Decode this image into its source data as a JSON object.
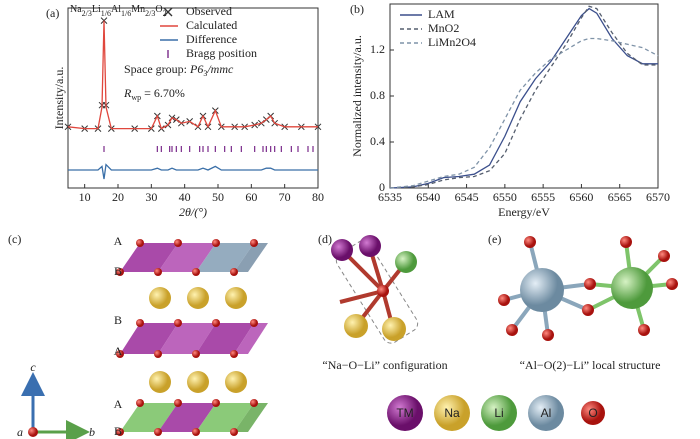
{
  "chart_data": [
    {
      "type": "line",
      "panel_label": "(a)",
      "formula": [
        [
          "Na",
          "2/3"
        ],
        [
          "Li",
          "1/6"
        ],
        [
          "Al",
          "1/6"
        ],
        [
          "Mn",
          "2/3"
        ],
        [
          "O",
          "2"
        ]
      ],
      "space_group": [
        "Space group: ",
        "P6",
        "3",
        "/mmc"
      ],
      "r_factor": [
        "R",
        "wp",
        " = 6.70%"
      ],
      "x_label": "2θ/(°)",
      "y_label": "Intensity/a.u.",
      "x": [
        5,
        10,
        14,
        15.2,
        15.8,
        16.4,
        18,
        25,
        30,
        31.8,
        33,
        35,
        36.2,
        37.5,
        39,
        41.5,
        44,
        45.5,
        47,
        49.2,
        51,
        55,
        58,
        61,
        63,
        64.5,
        65.8,
        67,
        70,
        75,
        80
      ],
      "series": [
        {
          "name": "Observed",
          "color": "#333333",
          "marker": "x",
          "values": [
            34,
            33,
            33,
            46,
            93,
            46,
            33,
            33,
            33,
            40,
            33,
            35,
            39,
            38,
            36,
            37,
            34,
            40,
            34,
            43,
            34,
            34,
            34,
            35,
            36,
            38,
            40,
            36,
            34,
            34,
            34
          ]
        },
        {
          "name": "Calculated",
          "color": "#e0473d",
          "values": [
            34,
            33,
            33,
            45,
            93,
            45,
            33,
            33,
            33,
            40,
            33,
            35,
            39,
            38,
            36,
            37,
            34,
            40,
            34,
            43,
            34,
            34,
            34,
            35,
            36,
            38,
            40,
            36,
            34,
            34,
            34
          ]
        },
        {
          "name": "Difference",
          "color": "#3a6fa8",
          "values": [
            10,
            10,
            10,
            12,
            5,
            13,
            10,
            10,
            10,
            11,
            10,
            10,
            11,
            10,
            10,
            10,
            10,
            11,
            10,
            12,
            10,
            10,
            10,
            10,
            10,
            11,
            11,
            10,
            10,
            10,
            10
          ]
        }
      ],
      "bragg": {
        "name": "Bragg position",
        "color": "#7a2a8a",
        "x": [
          15.8,
          31.8,
          33,
          35.5,
          36.2,
          37.5,
          39,
          41.5,
          44.5,
          45.5,
          47,
          49.2,
          52,
          54,
          57,
          61,
          63.5,
          64.5,
          65.8,
          67,
          69,
          72,
          74,
          77,
          78.5
        ]
      },
      "xlim": [
        5,
        80
      ],
      "xticks": [
        10,
        20,
        30,
        40,
        50,
        60,
        70,
        80
      ],
      "ylim": [
        0,
        100
      ]
    },
    {
      "type": "line",
      "panel_label": "(b)",
      "x_label": "Energy/eV",
      "y_label": "Normalized intensity/a.u.",
      "x": [
        6535,
        6538,
        6540,
        6542,
        6544,
        6546,
        6548,
        6550,
        6552,
        6554,
        6556,
        6558,
        6560,
        6561,
        6562,
        6564,
        6566,
        6568,
        6570
      ],
      "series": [
        {
          "name": "LAM",
          "color": "#3b4f8c",
          "style": "solid",
          "values": [
            0,
            0.01,
            0.04,
            0.09,
            0.1,
            0.12,
            0.2,
            0.45,
            0.75,
            0.95,
            1.1,
            1.3,
            1.5,
            1.56,
            1.52,
            1.3,
            1.15,
            1.08,
            1.08
          ]
        },
        {
          "name": "MnO2",
          "color": "#555e6e",
          "style": "dashed",
          "values": [
            0,
            0.01,
            0.03,
            0.07,
            0.09,
            0.1,
            0.15,
            0.3,
            0.6,
            0.85,
            1.05,
            1.25,
            1.48,
            1.58,
            1.56,
            1.35,
            1.17,
            1.07,
            1.07
          ]
        },
        {
          "name": "LiMn2O4",
          "color": "#7f93a8",
          "style": "dashed",
          "values": [
            0,
            0.02,
            0.06,
            0.1,
            0.12,
            0.18,
            0.35,
            0.6,
            0.85,
            1.0,
            1.12,
            1.2,
            1.28,
            1.3,
            1.3,
            1.28,
            1.25,
            1.22,
            1.15
          ]
        }
      ],
      "xlim": [
        6535,
        6570
      ],
      "xticks": [
        6535,
        6540,
        6545,
        6550,
        6555,
        6560,
        6565,
        6570
      ],
      "ylim": [
        0,
        1.6
      ],
      "yticks": [
        0,
        0.4,
        0.8,
        1.2
      ]
    }
  ],
  "structure": {
    "label": "(c)",
    "layers": [
      "A",
      "B",
      "B",
      "A",
      "A",
      "B"
    ],
    "axes": [
      "c",
      "a",
      "b"
    ]
  },
  "configuration": {
    "label": "(d)",
    "caption": "“Na−O−Li” configuration"
  },
  "local_structure": {
    "label": "(e)",
    "caption": "“Al−O(2)−Li” local structure"
  },
  "legend": [
    "TM",
    "Na",
    "Li",
    "Al",
    "O"
  ]
}
